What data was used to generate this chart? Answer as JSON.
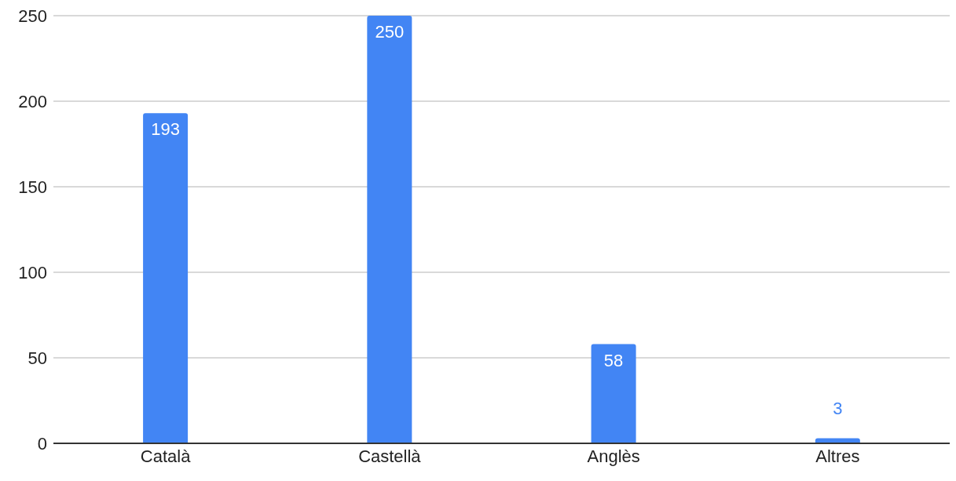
{
  "chart_data": {
    "type": "bar",
    "categories": [
      "Català",
      "Castellà",
      "Anglès",
      "Altres"
    ],
    "values": [
      193,
      250,
      58,
      3
    ],
    "color": "#4285f4",
    "ylim": [
      0,
      250
    ],
    "yticks": [
      0,
      50,
      100,
      150,
      200,
      250
    ],
    "grid": "y",
    "data_labels": true
  }
}
